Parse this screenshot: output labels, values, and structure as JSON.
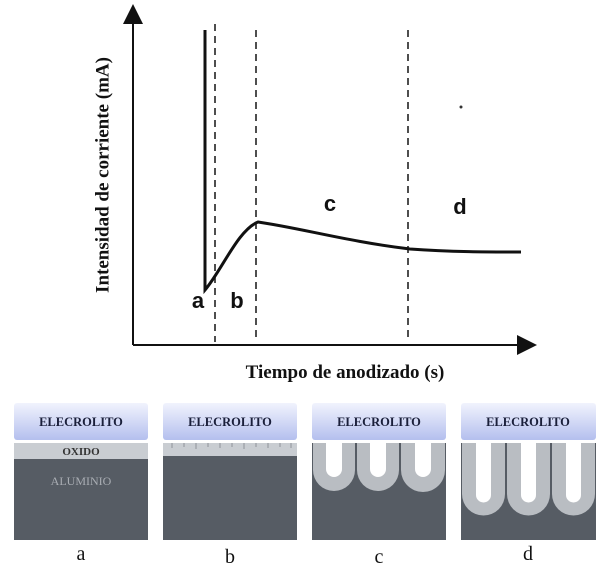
{
  "graph": {
    "y_axis_label": "Intensidad de corriente (mA)",
    "x_axis_label": "Tiempo de anodizado (s)",
    "regions": [
      "a",
      "b",
      "c",
      "d"
    ]
  },
  "panels": [
    {
      "electrolyte": "ELECROLITO",
      "oxide": "OXIDO",
      "metal": "ALUMINIO",
      "caption": "a"
    },
    {
      "electrolyte": "ELECROLITO",
      "caption": "b"
    },
    {
      "electrolyte": "ELECROLITO",
      "caption": "c"
    },
    {
      "electrolyte": "ELECROLITO",
      "caption": "d"
    }
  ]
}
